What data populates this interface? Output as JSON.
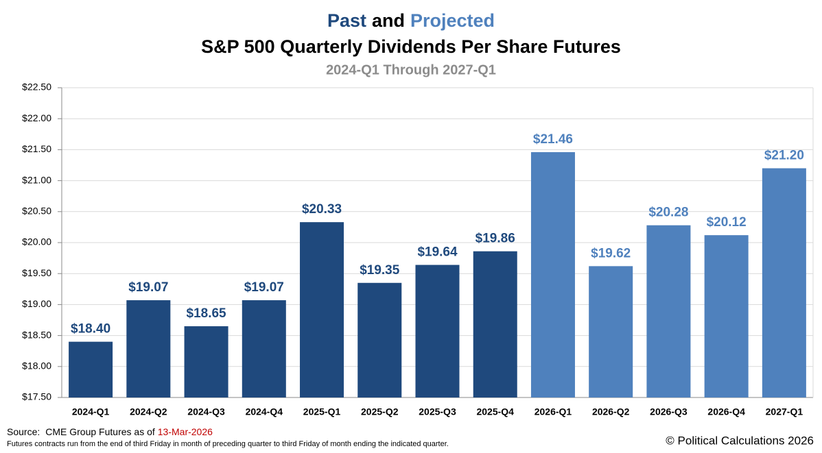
{
  "chart_data": {
    "type": "bar",
    "title_segments": [
      {
        "text": "Past",
        "color": "#1f497d"
      },
      {
        "text": "and",
        "color": "#000000"
      },
      {
        "text": "Projected",
        "color": "#4f81bd"
      }
    ],
    "title": "S&P 500 Quarterly Dividends Per Share Futures",
    "subtitle": "2024-Q1 Through 2027-Q1",
    "categories": [
      "2024-Q1",
      "2024-Q2",
      "2024-Q3",
      "2024-Q4",
      "2025-Q1",
      "2025-Q2",
      "2025-Q3",
      "2025-Q4",
      "2026-Q1",
      "2026-Q2",
      "2026-Q3",
      "2026-Q4",
      "2027-Q1"
    ],
    "values": [
      18.4,
      19.07,
      18.65,
      19.07,
      20.33,
      19.35,
      19.64,
      19.86,
      21.46,
      19.62,
      20.28,
      20.12,
      21.2
    ],
    "value_labels": [
      "$18.40",
      "$19.07",
      "$18.65",
      "$19.07",
      "$20.33",
      "$19.35",
      "$19.64",
      "$19.86",
      "$21.46",
      "$19.62",
      "$20.28",
      "$20.12",
      "$21.20"
    ],
    "colors": [
      "#1f497d",
      "#1f497d",
      "#1f497d",
      "#1f497d",
      "#1f497d",
      "#1f497d",
      "#1f497d",
      "#1f497d",
      "#4f81bd",
      "#4f81bd",
      "#4f81bd",
      "#4f81bd",
      "#4f81bd"
    ],
    "ylim": [
      17.5,
      22.5
    ],
    "yticks": [
      {
        "value": 17.5,
        "label": "$17.50"
      },
      {
        "value": 18,
        "label": "$18.00"
      },
      {
        "value": 18.5,
        "label": "$18.50"
      },
      {
        "value": 19,
        "label": "$19.00"
      },
      {
        "value": 19.5,
        "label": "$19.50"
      },
      {
        "value": 20,
        "label": "$20.00"
      },
      {
        "value": 20.5,
        "label": "$20.50"
      },
      {
        "value": 21,
        "label": "$21.00"
      },
      {
        "value": 21.5,
        "label": "$21.50"
      },
      {
        "value": 22,
        "label": "$22.00"
      },
      {
        "value": 22.5,
        "label": "$22.50"
      }
    ],
    "grid": true,
    "source_label": "Source:",
    "source_text": "CME Group Futures as of",
    "source_date": "13-Mar-2026",
    "footnote": "Futures contracts run from the end of third Friday in month of preceding quarter to third Friday of month ending the indicated quarter.",
    "copyright": "© Political Calculations 2026"
  }
}
